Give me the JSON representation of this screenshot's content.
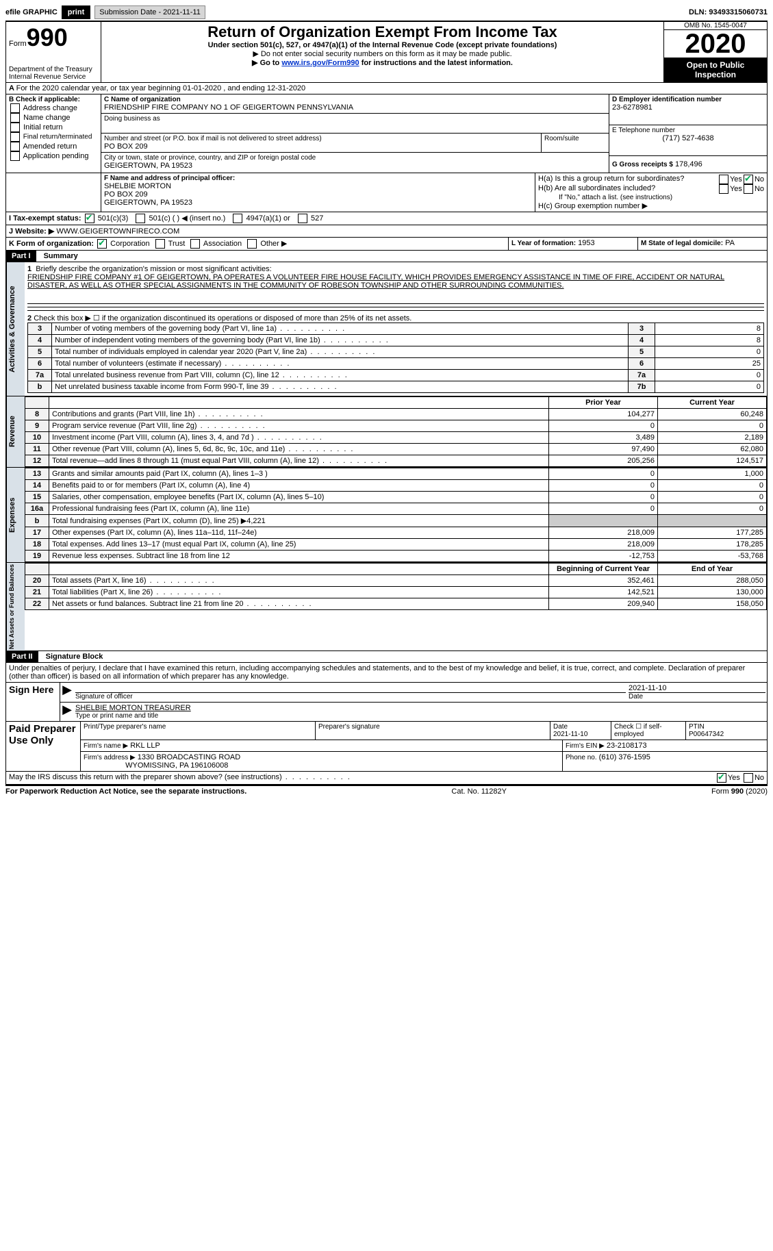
{
  "topbar": {
    "efile": "efile GRAPHIC",
    "print": "print",
    "submission": "Submission Date - 2021-11-11",
    "dln_label": "DLN:",
    "dln": "93493315060731"
  },
  "header": {
    "form_word": "Form",
    "form_num": "990",
    "title": "Return of Organization Exempt From Income Tax",
    "subtitle": "Under section 501(c), 527, or 4947(a)(1) of the Internal Revenue Code (except private foundations)",
    "note1": "▶ Do not enter social security numbers on this form as it may be made public.",
    "note2_pre": "▶ Go to ",
    "note2_link": "www.irs.gov/Form990",
    "note2_post": " for instructions and the latest information.",
    "dept": "Department of the Treasury",
    "irs": "Internal Revenue Service",
    "omb": "OMB No. 1545-0047",
    "year": "2020",
    "open": "Open to Public Inspection"
  },
  "period": {
    "line_a": "For the 2020 calendar year, or tax year beginning 01-01-2020    , and ending 12-31-2020"
  },
  "boxB": {
    "label": "B Check if applicable:",
    "items": [
      "Address change",
      "Name change",
      "Initial return",
      "Final return/terminated",
      "Amended return",
      "Application pending"
    ]
  },
  "boxC": {
    "name_label": "C Name of organization",
    "name": "FRIENDSHIP FIRE COMPANY NO 1 OF GEIGERTOWN PENNSYLVANIA",
    "dba_label": "Doing business as",
    "addr_label": "Number and street (or P.O. box if mail is not delivered to street address)",
    "addr": "PO BOX 209",
    "room_label": "Room/suite",
    "city_label": "City or town, state or province, country, and ZIP or foreign postal code",
    "city": "GEIGERTOWN, PA  19523"
  },
  "boxD": {
    "label": "D Employer identification number",
    "val": "23-6278981"
  },
  "boxE": {
    "label": "E Telephone number",
    "val": "(717) 527-4638"
  },
  "boxG": {
    "label": "G Gross receipts $",
    "val": "178,496"
  },
  "boxF": {
    "label": "F  Name and address of principal officer:",
    "name": "SHELBIE MORTON",
    "addr1": "PO BOX 209",
    "addr2": "GEIGERTOWN, PA  19523"
  },
  "boxH": {
    "ha": "H(a)  Is this a group return for subordinates?",
    "hb": "H(b)  Are all subordinates included?",
    "hb_note": "If \"No,\" attach a list. (see instructions)",
    "hc": "H(c)  Group exemption number ▶",
    "yes": "Yes",
    "no": "No"
  },
  "boxI": {
    "label": "I   Tax-exempt status:",
    "opts": [
      "501(c)(3)",
      "501(c) (  ) ◀ (insert no.)",
      "4947(a)(1) or",
      "527"
    ]
  },
  "boxJ": {
    "label": "J   Website: ▶",
    "val": "WWW.GEIGERTOWNFIRECO.COM"
  },
  "boxK": {
    "label": "K Form of organization:",
    "opts": [
      "Corporation",
      "Trust",
      "Association",
      "Other ▶"
    ]
  },
  "boxL": {
    "label": "L Year of formation:",
    "val": "1953"
  },
  "boxM": {
    "label": "M State of legal domicile:",
    "val": "PA"
  },
  "part1": {
    "badge": "Part I",
    "title": "Summary",
    "q1_label": "1",
    "q1": "Briefly describe the organization's mission or most significant activities:",
    "mission": "FRIENDSHIP FIRE COMPANY #1 OF GEIGERTOWN, PA OPERATES A VOLUNTEER FIRE HOUSE FACILITY, WHICH PROVIDES EMERGENCY ASSISTANCE IN TIME OF FIRE, ACCIDENT OR NATURAL DISASTER, AS WELL AS OTHER SPECIAL ASSIGNMENTS IN THE COMMUNITY OF ROBESON TOWNSHIP AND OTHER SURROUNDING COMMUNITIES.",
    "q2": "Check this box ▶ ☐  if the organization discontinued its operations or disposed of more than 25% of its net assets.",
    "side_ag": "Activities & Governance",
    "side_rev": "Revenue",
    "side_exp": "Expenses",
    "side_na": "Net Assets or Fund Balances",
    "rows_ag": [
      {
        "n": "3",
        "t": "Number of voting members of the governing body (Part VI, line 1a)",
        "c": "3",
        "v": "8"
      },
      {
        "n": "4",
        "t": "Number of independent voting members of the governing body (Part VI, line 1b)",
        "c": "4",
        "v": "8"
      },
      {
        "n": "5",
        "t": "Total number of individuals employed in calendar year 2020 (Part V, line 2a)",
        "c": "5",
        "v": "0"
      },
      {
        "n": "6",
        "t": "Total number of volunteers (estimate if necessary)",
        "c": "6",
        "v": "25"
      },
      {
        "n": "7a",
        "t": "Total unrelated business revenue from Part VIII, column (C), line 12",
        "c": "7a",
        "v": "0"
      },
      {
        "n": "b",
        "t": "Net unrelated business taxable income from Form 990-T, line 39",
        "c": "7b",
        "v": "0"
      }
    ],
    "col_prior": "Prior Year",
    "col_curr": "Current Year",
    "rows_rev": [
      {
        "n": "8",
        "t": "Contributions and grants (Part VIII, line 1h)",
        "p": "104,277",
        "c": "60,248"
      },
      {
        "n": "9",
        "t": "Program service revenue (Part VIII, line 2g)",
        "p": "0",
        "c": "0"
      },
      {
        "n": "10",
        "t": "Investment income (Part VIII, column (A), lines 3, 4, and 7d )",
        "p": "3,489",
        "c": "2,189"
      },
      {
        "n": "11",
        "t": "Other revenue (Part VIII, column (A), lines 5, 6d, 8c, 9c, 10c, and 11e)",
        "p": "97,490",
        "c": "62,080"
      },
      {
        "n": "12",
        "t": "Total revenue—add lines 8 through 11 (must equal Part VIII, column (A), line 12)",
        "p": "205,256",
        "c": "124,517"
      }
    ],
    "rows_exp": [
      {
        "n": "13",
        "t": "Grants and similar amounts paid (Part IX, column (A), lines 1–3 )",
        "p": "0",
        "c": "1,000"
      },
      {
        "n": "14",
        "t": "Benefits paid to or for members (Part IX, column (A), line 4)",
        "p": "0",
        "c": "0"
      },
      {
        "n": "15",
        "t": "Salaries, other compensation, employee benefits (Part IX, column (A), lines 5–10)",
        "p": "0",
        "c": "0"
      },
      {
        "n": "16a",
        "t": "Professional fundraising fees (Part IX, column (A), line 11e)",
        "p": "0",
        "c": "0"
      },
      {
        "n": "b",
        "t": "Total fundraising expenses (Part IX, column (D), line 25) ▶4,221",
        "p": "",
        "c": "",
        "shaded": true
      },
      {
        "n": "17",
        "t": "Other expenses (Part IX, column (A), lines 11a–11d, 11f–24e)",
        "p": "218,009",
        "c": "177,285"
      },
      {
        "n": "18",
        "t": "Total expenses. Add lines 13–17 (must equal Part IX, column (A), line 25)",
        "p": "218,009",
        "c": "178,285"
      },
      {
        "n": "19",
        "t": "Revenue less expenses. Subtract line 18 from line 12",
        "p": "-12,753",
        "c": "-53,768"
      }
    ],
    "col_boy": "Beginning of Current Year",
    "col_eoy": "End of Year",
    "rows_na": [
      {
        "n": "20",
        "t": "Total assets (Part X, line 16)",
        "p": "352,461",
        "c": "288,050"
      },
      {
        "n": "21",
        "t": "Total liabilities (Part X, line 26)",
        "p": "142,521",
        "c": "130,000"
      },
      {
        "n": "22",
        "t": "Net assets or fund balances. Subtract line 21 from line 20",
        "p": "209,940",
        "c": "158,050"
      }
    ]
  },
  "part2": {
    "badge": "Part II",
    "title": "Signature Block",
    "decl": "Under penalties of perjury, I declare that I have examined this return, including accompanying schedules and statements, and to the best of my knowledge and belief, it is true, correct, and complete. Declaration of preparer (other than officer) is based on all information of which preparer has any knowledge.",
    "sign_here": "Sign Here",
    "sig_officer": "Signature of officer",
    "sig_date": "Date",
    "sig_date_val": "2021-11-10",
    "typed": "SHELBIE MORTON  TREASURER",
    "typed_label": "Type or print name and title",
    "paid": "Paid Preparer Use Only",
    "prep_name_label": "Print/Type preparer's name",
    "prep_sig_label": "Preparer's signature",
    "prep_date_label": "Date",
    "prep_date": "2021-11-10",
    "self_emp": "Check ☐ if self-employed",
    "ptin_label": "PTIN",
    "ptin": "P00647342",
    "firm_name_label": "Firm's name    ▶",
    "firm_name": "RKL LLP",
    "firm_ein_label": "Firm's EIN ▶",
    "firm_ein": "23-2108173",
    "firm_addr_label": "Firm's address ▶",
    "firm_addr1": "1330 BROADCASTING ROAD",
    "firm_addr2": "WYOMISSING, PA  196106008",
    "firm_phone_label": "Phone no.",
    "firm_phone": "(610) 376-1595",
    "discuss": "May the IRS discuss this return with the preparer shown above? (see instructions)"
  },
  "footer": {
    "left": "For Paperwork Reduction Act Notice, see the separate instructions.",
    "mid": "Cat. No. 11282Y",
    "right": "Form 990 (2020)"
  }
}
